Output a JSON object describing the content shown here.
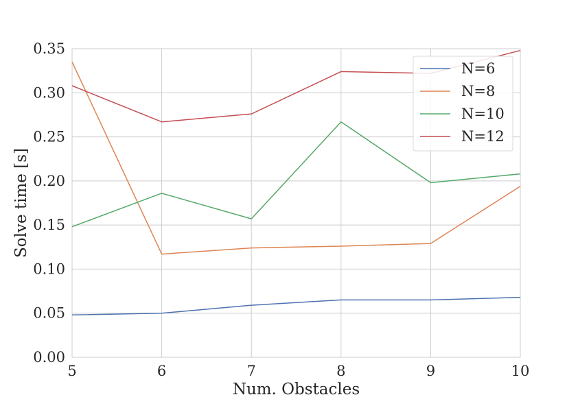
{
  "chart_data": {
    "type": "line",
    "title": "",
    "xlabel": "Num. Obstacles",
    "ylabel": "Solve time  [s]",
    "x": [
      5,
      6,
      7,
      8,
      9,
      10
    ],
    "xlim": [
      5,
      10
    ],
    "ylim": [
      0,
      0.35
    ],
    "xticks": [
      "5",
      "6",
      "7",
      "8",
      "9",
      "10"
    ],
    "yticks": [
      "0.00",
      "0.05",
      "0.10",
      "0.15",
      "0.20",
      "0.25",
      "0.30",
      "0.35"
    ],
    "grid": true,
    "legend_position": "top-right",
    "series": [
      {
        "name": "N=6",
        "color": "#4c72b0",
        "values": [
          0.048,
          0.05,
          0.059,
          0.065,
          0.065,
          0.068
        ]
      },
      {
        "name": "N=8",
        "color": "#dd8452",
        "values": [
          0.335,
          0.117,
          0.124,
          0.126,
          0.129,
          0.194
        ]
      },
      {
        "name": "N=10",
        "color": "#55a868",
        "values": [
          0.148,
          0.186,
          0.157,
          0.267,
          0.198,
          0.208
        ]
      },
      {
        "name": "N=12",
        "color": "#c44e52",
        "values": [
          0.308,
          0.267,
          0.276,
          0.324,
          0.322,
          0.348
        ]
      }
    ]
  }
}
